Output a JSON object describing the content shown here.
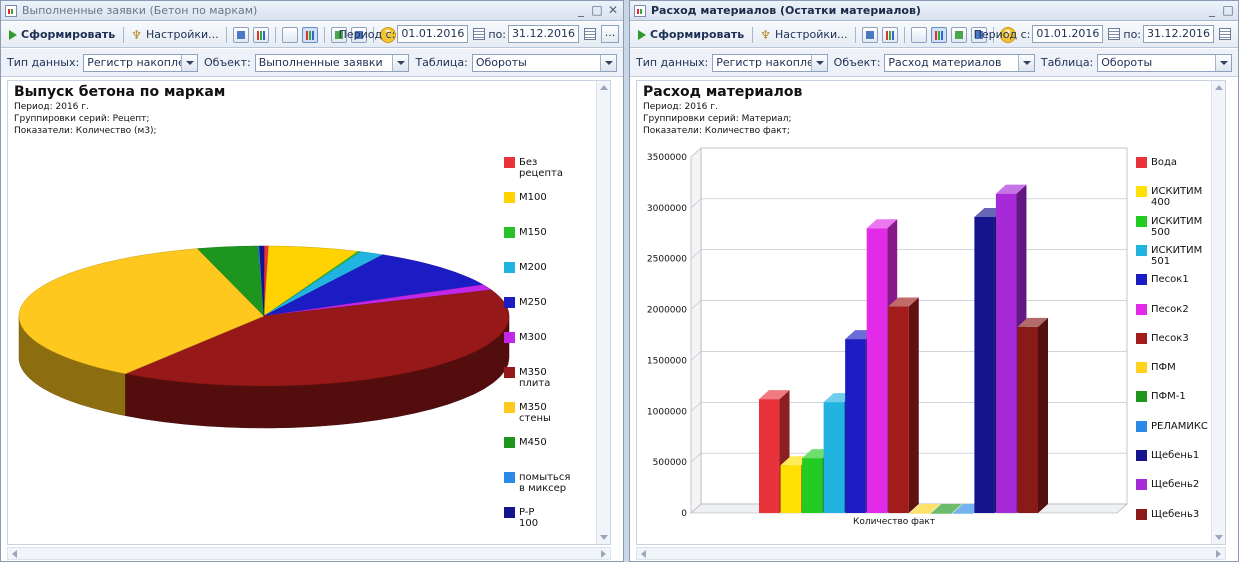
{
  "left": {
    "window_title": "Выполненные заявки (Бетон по маркам)",
    "toolbar": {
      "run_label": "Сформировать",
      "settings_label": "Настройки...",
      "period_from_label": "Период с:",
      "period_from": "01.01.2016",
      "period_to_label": "по:",
      "period_to": "31.12.2016",
      "ellipsis": "..."
    },
    "filters": {
      "data_type_label": "Тип данных:",
      "data_type_value": "Регистр накопления",
      "object_label": "Объект:",
      "object_value": "Выполненные заявки",
      "table_label": "Таблица:",
      "table_value": "Обороты"
    },
    "report": {
      "title": "Выпуск бетона по маркам",
      "period_line": "Период: 2016 г.",
      "groupings_line": "Группировки серий: Рецепт;",
      "indicators_line": "Показатели: Количество (м3);"
    },
    "chart_data": {
      "type": "pie",
      "title": "Выпуск бетона по маркам",
      "labels": [
        "Без рецепта",
        "M100",
        "M150",
        "M200",
        "M250",
        "M300",
        "M350 плита",
        "M350 стены",
        "M450",
        "помыться в миксер",
        "P-P 100"
      ],
      "values": [
        0.3,
        6.0,
        0.2,
        1.6,
        9.6,
        1.3,
        40.8,
        36.2,
        4.0,
        0.1,
        0.3
      ],
      "colors": [
        "#e8333b",
        "#ffd200",
        "#27c027",
        "#22b4e0",
        "#1c1cc4",
        "#c227e8",
        "#961818",
        "#ffc81e",
        "#1e961e",
        "#2a8ae6",
        "#14148c"
      ]
    }
  },
  "right": {
    "window_title": "Расход материалов (Остатки материалов)",
    "toolbar": {
      "run_label": "Сформировать",
      "settings_label": "Настройки...",
      "period_from_label": "Период с:",
      "period_from": "01.01.2016",
      "period_to_label": "по:",
      "period_to": "31.12.2016"
    },
    "filters": {
      "data_type_label": "Тип данных:",
      "data_type_value": "Регистр накопления",
      "object_label": "Объект:",
      "object_value": "Расход материалов",
      "table_label": "Таблица:",
      "table_value": "Обороты"
    },
    "report": {
      "title": "Расход материалов",
      "period_line": "Период: 2016 г.",
      "groupings_line": "Группировки серий: Материал;",
      "indicators_line": "Показатели: Количество факт;"
    },
    "chart_data": {
      "type": "bar",
      "categories": [
        "Количество факт"
      ],
      "series": [
        {
          "name": "Вода",
          "value": 1120000
        },
        {
          "name": "ИСКИТИМ 400",
          "value": 470000
        },
        {
          "name": "ИСКИТИМ 500",
          "value": 540000
        },
        {
          "name": "ИСКИТИМ 501",
          "value": 1090000
        },
        {
          "name": "Песок1",
          "value": 1710000
        },
        {
          "name": "Песок2",
          "value": 2800000
        },
        {
          "name": "Песок3",
          "value": 2030000
        },
        {
          "name": "ПФМ",
          "value": 0
        },
        {
          "name": "ПФМ-1",
          "value": 0
        },
        {
          "name": "РЕЛАМИКС",
          "value": 0
        },
        {
          "name": "Щебень1",
          "value": 2910000
        },
        {
          "name": "Щебень2",
          "value": 3140000
        },
        {
          "name": "Щебень3",
          "value": 1830000
        }
      ],
      "colors": [
        "#e8333b",
        "#ffe000",
        "#22cc22",
        "#22b4e0",
        "#1c1cc4",
        "#e22ae8",
        "#a31c1c",
        "#ffd21e",
        "#1e961e",
        "#2a8ae6",
        "#14148c",
        "#a62ad8",
        "#8a1a1a"
      ],
      "ylim": [
        0,
        3500000
      ],
      "yticks": [
        "0",
        "500000",
        "1000000",
        "1500000",
        "2000000",
        "2500000",
        "3000000",
        "3500000"
      ]
    }
  }
}
